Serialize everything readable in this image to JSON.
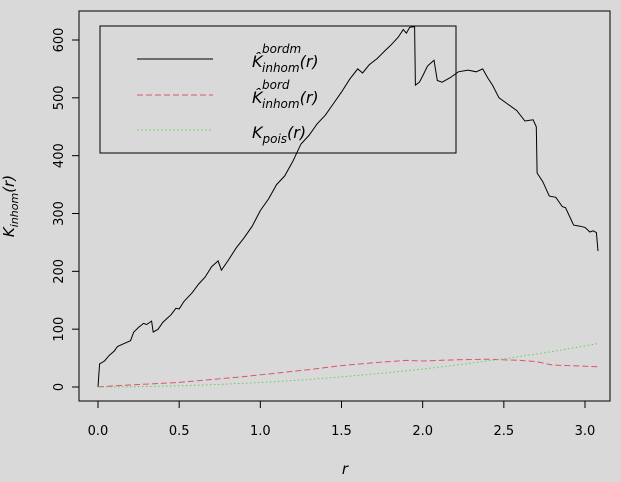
{
  "chart_data": {
    "type": "line",
    "xlabel": "r",
    "ylabel": {
      "main": "K",
      "sub": "inhom",
      "arg": "(r)"
    },
    "xlim": [
      -0.1,
      3.2
    ],
    "ylim": [
      -30,
      650
    ],
    "x_ticks": [
      0.0,
      0.5,
      1.0,
      1.5,
      2.0,
      2.5,
      3.0
    ],
    "x_tick_labels": [
      "0.0",
      "0.5",
      "1.0",
      "1.5",
      "2.0",
      "2.5",
      "3.0"
    ],
    "y_ticks": [
      0,
      100,
      200,
      300,
      400,
      500,
      600
    ],
    "y_tick_labels": [
      "0",
      "100",
      "200",
      "300",
      "400",
      "500",
      "600"
    ],
    "grid": false,
    "legend_position": "top-left",
    "legend": [
      {
        "main": "K̂",
        "sub": "inhom",
        "sup": "bordm",
        "arg": "(r)",
        "color": "#000000",
        "dash": "solid"
      },
      {
        "main": "K̂",
        "sub": "inhom",
        "sup": "bord",
        "arg": "(r)",
        "color": "#df536b",
        "dash": "dashed"
      },
      {
        "main": "K",
        "sub": "pois",
        "sup": "",
        "arg": "(r)",
        "color": "#61d04f",
        "dash": "dotted"
      }
    ],
    "series": [
      {
        "color": "#000000",
        "dash": "solid",
        "points": [
          [
            0.0,
            0
          ],
          [
            0.01,
            40
          ],
          [
            0.04,
            45
          ],
          [
            0.07,
            55
          ],
          [
            0.1,
            62
          ],
          [
            0.12,
            70
          ],
          [
            0.16,
            75
          ],
          [
            0.2,
            80
          ],
          [
            0.22,
            95
          ],
          [
            0.25,
            103
          ],
          [
            0.28,
            110
          ],
          [
            0.3,
            108
          ],
          [
            0.33,
            114
          ],
          [
            0.34,
            95
          ],
          [
            0.37,
            100
          ],
          [
            0.4,
            112
          ],
          [
            0.45,
            125
          ],
          [
            0.48,
            136
          ],
          [
            0.5,
            135
          ],
          [
            0.53,
            148
          ],
          [
            0.58,
            163
          ],
          [
            0.62,
            178
          ],
          [
            0.66,
            190
          ],
          [
            0.7,
            208
          ],
          [
            0.74,
            218
          ],
          [
            0.76,
            202
          ],
          [
            0.8,
            218
          ],
          [
            0.85,
            240
          ],
          [
            0.9,
            258
          ],
          [
            0.95,
            278
          ],
          [
            1.0,
            305
          ],
          [
            1.05,
            325
          ],
          [
            1.1,
            350
          ],
          [
            1.15,
            365
          ],
          [
            1.2,
            390
          ],
          [
            1.25,
            420
          ],
          [
            1.3,
            435
          ],
          [
            1.35,
            455
          ],
          [
            1.4,
            470
          ],
          [
            1.45,
            490
          ],
          [
            1.5,
            510
          ],
          [
            1.55,
            532
          ],
          [
            1.6,
            550
          ],
          [
            1.63,
            543
          ],
          [
            1.67,
            557
          ],
          [
            1.72,
            568
          ],
          [
            1.77,
            582
          ],
          [
            1.8,
            590
          ],
          [
            1.85,
            605
          ],
          [
            1.88,
            618
          ],
          [
            1.9,
            612
          ],
          [
            1.92,
            622
          ],
          [
            1.95,
            623
          ],
          [
            1.955,
            522
          ],
          [
            1.98,
            527
          ],
          [
            2.0,
            538
          ],
          [
            2.03,
            555
          ],
          [
            2.07,
            565
          ],
          [
            2.09,
            530
          ],
          [
            2.12,
            527
          ],
          [
            2.17,
            535
          ],
          [
            2.22,
            545
          ],
          [
            2.28,
            548
          ],
          [
            2.33,
            545
          ],
          [
            2.37,
            550
          ],
          [
            2.4,
            535
          ],
          [
            2.43,
            522
          ],
          [
            2.47,
            500
          ],
          [
            2.52,
            490
          ],
          [
            2.58,
            478
          ],
          [
            2.63,
            460
          ],
          [
            2.68,
            462
          ],
          [
            2.7,
            450
          ],
          [
            2.705,
            370
          ],
          [
            2.74,
            355
          ],
          [
            2.78,
            330
          ],
          [
            2.82,
            328
          ],
          [
            2.86,
            312
          ],
          [
            2.88,
            310
          ],
          [
            2.91,
            292
          ],
          [
            2.93,
            280
          ],
          [
            2.97,
            278
          ],
          [
            3.0,
            276
          ],
          [
            3.03,
            268
          ],
          [
            3.05,
            270
          ],
          [
            3.07,
            267
          ],
          [
            3.08,
            235
          ]
        ]
      },
      {
        "color": "#df536b",
        "dash": "dashed",
        "points": [
          [
            0.0,
            0
          ],
          [
            0.1,
            2
          ],
          [
            0.3,
            5
          ],
          [
            0.5,
            8
          ],
          [
            0.7,
            13
          ],
          [
            0.9,
            18
          ],
          [
            1.1,
            24
          ],
          [
            1.3,
            30
          ],
          [
            1.5,
            37
          ],
          [
            1.7,
            42
          ],
          [
            1.9,
            46
          ],
          [
            2.0,
            45
          ],
          [
            2.2,
            47
          ],
          [
            2.4,
            48
          ],
          [
            2.6,
            46
          ],
          [
            2.7,
            44
          ],
          [
            2.8,
            38
          ],
          [
            2.9,
            37
          ],
          [
            3.0,
            36
          ],
          [
            3.08,
            35
          ]
        ]
      },
      {
        "color": "#61d04f",
        "dash": "dotted",
        "points": [
          [
            0.0,
            0
          ],
          [
            0.25,
            0.5
          ],
          [
            0.5,
            2
          ],
          [
            0.75,
            4.5
          ],
          [
            1.0,
            7.8
          ],
          [
            1.25,
            12
          ],
          [
            1.5,
            17.5
          ],
          [
            1.75,
            23.8
          ],
          [
            2.0,
            31
          ],
          [
            2.25,
            39.5
          ],
          [
            2.5,
            49
          ],
          [
            2.75,
            59
          ],
          [
            3.08,
            75
          ]
        ]
      }
    ]
  }
}
